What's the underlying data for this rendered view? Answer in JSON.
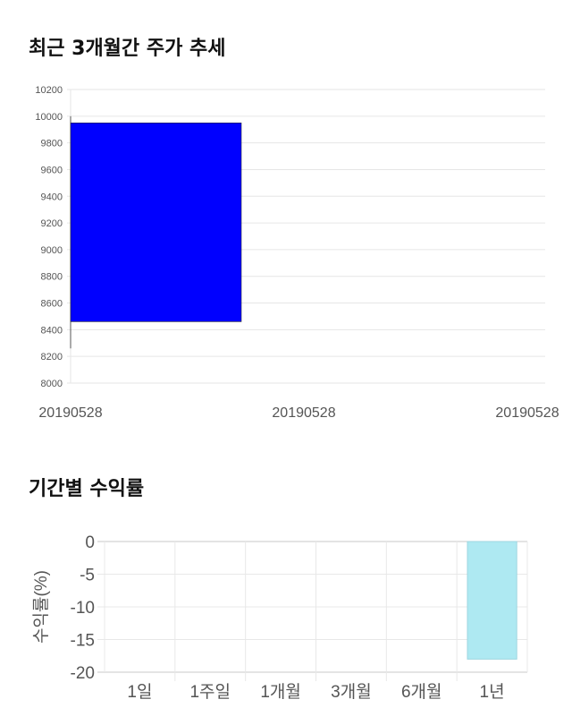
{
  "sections": {
    "price_title": "최근 3개월간 주가 추세",
    "return_title": "기간별 수익률"
  },
  "chart_data": [
    {
      "type": "candlestick",
      "title": "최근 3개월간 주가 추세",
      "x_tick_labels": [
        "20190528",
        "20190528",
        "20190528"
      ],
      "y_ticks": [
        8000,
        8200,
        8400,
        8600,
        8800,
        9000,
        9200,
        9400,
        9600,
        9800,
        10000,
        10200
      ],
      "ylim": [
        8000,
        10200
      ],
      "grid": true,
      "candles": [
        {
          "date": "20190528",
          "open": 9950,
          "close": 8460,
          "high": 10000,
          "low": 8260
        }
      ],
      "colors": {
        "down": "#0000ff"
      }
    },
    {
      "type": "bar",
      "title": "기간별 수익률",
      "ylabel": "수익률(%)",
      "categories": [
        "1일",
        "1주일",
        "1개월",
        "3개월",
        "6개월",
        "1년"
      ],
      "values": [
        0,
        0,
        0,
        0,
        0,
        -18
      ],
      "y_ticks": [
        0,
        -5,
        -10,
        -15,
        -20
      ],
      "ylim": [
        -20,
        0
      ],
      "grid": true,
      "colors": {
        "bar": "#aee9f2",
        "bar_border": "#9fd6e0"
      }
    }
  ]
}
